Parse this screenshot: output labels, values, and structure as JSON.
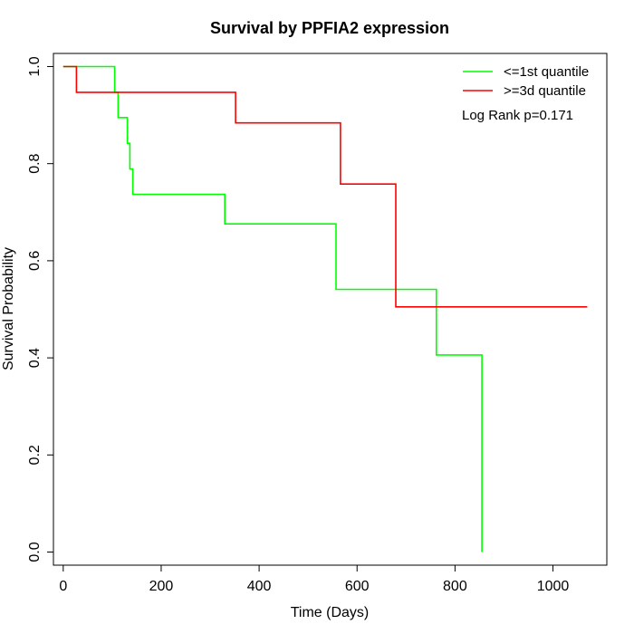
{
  "chart_data": {
    "type": "line",
    "title": "Survival by PPFIA2 expression",
    "xlabel": "Time (Days)",
    "ylabel": "Survival Probability",
    "xlim": [
      -20,
      1110
    ],
    "ylim": [
      -0.027,
      1.027
    ],
    "x_ticks": [
      0,
      200,
      400,
      600,
      800,
      1000
    ],
    "x_tick_labels": [
      "0",
      "200",
      "400",
      "600",
      "800",
      "1000"
    ],
    "y_ticks": [
      0.0,
      0.2,
      0.4,
      0.6,
      0.8,
      1.0
    ],
    "y_tick_labels": [
      "0.0",
      "0.2",
      "0.4",
      "0.6",
      "0.8",
      "1.0"
    ],
    "grid": false,
    "legend_position": "top-right",
    "annotation": "Log Rank p=0.171",
    "series": [
      {
        "name": "<=1st quantile",
        "color": "#00ff00",
        "step_points": [
          [
            0,
            1.0
          ],
          [
            105,
            1.0
          ],
          [
            105,
            0.947
          ],
          [
            112,
            0.947
          ],
          [
            112,
            0.895
          ],
          [
            131,
            0.895
          ],
          [
            131,
            0.842
          ],
          [
            136,
            0.842
          ],
          [
            136,
            0.789
          ],
          [
            142,
            0.789
          ],
          [
            142,
            0.737
          ],
          [
            330,
            0.737
          ],
          [
            330,
            0.676
          ],
          [
            557,
            0.676
          ],
          [
            557,
            0.541
          ],
          [
            762,
            0.541
          ],
          [
            762,
            0.406
          ],
          [
            855,
            0.406
          ],
          [
            855,
            0.0
          ]
        ]
      },
      {
        "name": ">=3d quantile",
        "color": "#ff0000",
        "step_points": [
          [
            0,
            1.0
          ],
          [
            27,
            1.0
          ],
          [
            27,
            0.947
          ],
          [
            352,
            0.947
          ],
          [
            352,
            0.884
          ],
          [
            566,
            0.884
          ],
          [
            566,
            0.758
          ],
          [
            679,
            0.758
          ],
          [
            679,
            0.505
          ],
          [
            1070,
            0.505
          ]
        ]
      }
    ]
  }
}
